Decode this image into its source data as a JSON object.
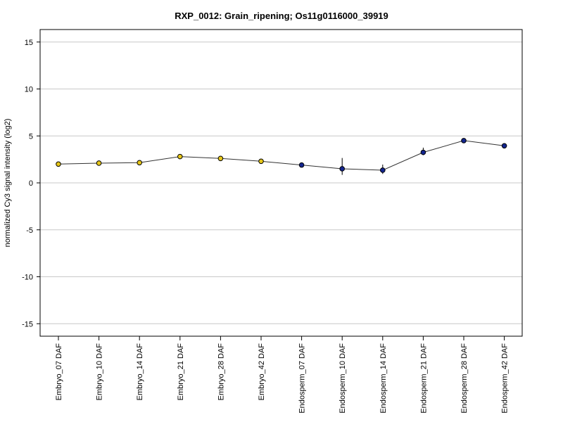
{
  "chart_data": {
    "type": "line",
    "title": "RXP_0012: Grain_ripening; Os11g0116000_39919",
    "ylabel": "normalized Cy3 signal intensity (log2)",
    "xlabel": "",
    "ylim": [
      -16.3,
      16.3
    ],
    "yticks": [
      -15,
      -10,
      -5,
      0,
      5,
      10,
      15
    ],
    "grid": true,
    "categories": [
      "Embryo_07 DAF",
      "Embryo_10 DAF",
      "Embryo_14 DAF",
      "Embryo_21 DAF",
      "Embryo_28 DAF",
      "Embryo_42 DAF",
      "Endosperm_07 DAF",
      "Endosperm_10 DAF",
      "Endosperm_14 DAF",
      "Endosperm_21 DAF",
      "Endosperm_28 DAF",
      "Endosperm_42 DAF"
    ],
    "values": [
      2.0,
      2.1,
      2.15,
      2.8,
      2.6,
      2.3,
      1.9,
      1.5,
      1.35,
      3.25,
      4.5,
      3.95
    ],
    "error_low": [
      2.0,
      2.1,
      2.15,
      2.8,
      2.6,
      2.3,
      1.9,
      0.85,
      0.95,
      2.95,
      4.5,
      3.95
    ],
    "error_high": [
      2.0,
      2.1,
      2.15,
      2.8,
      2.6,
      2.3,
      1.9,
      2.65,
      1.95,
      3.75,
      4.5,
      3.95
    ],
    "point_colors": [
      "#e6c619",
      "#e6c619",
      "#e6c619",
      "#e6c619",
      "#e6c619",
      "#e6c619",
      "#13258f",
      "#13258f",
      "#13258f",
      "#13258f",
      "#13258f",
      "#13258f"
    ],
    "line_color": "#333333",
    "grid_color": "#c8c8c8"
  }
}
